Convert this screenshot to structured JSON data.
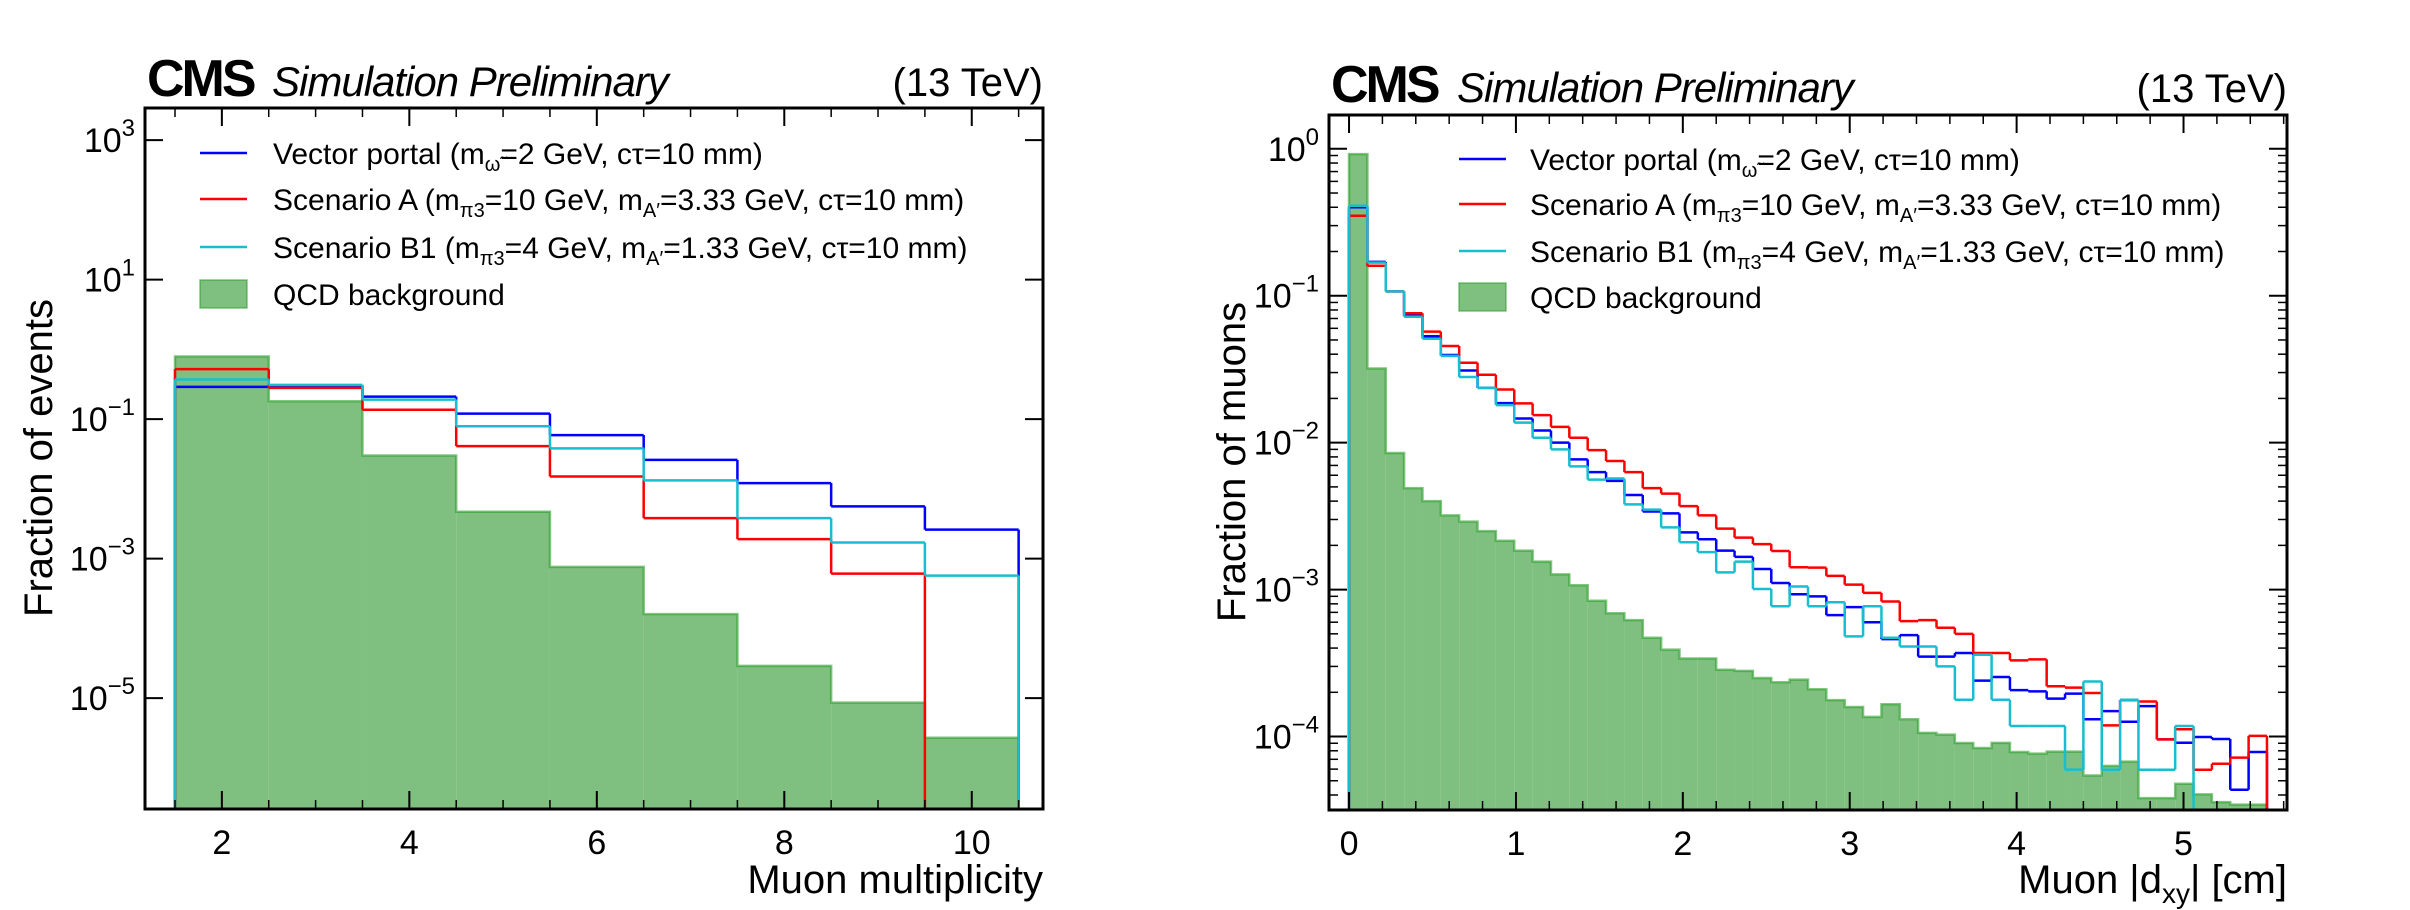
{
  "chart_data": [
    {
      "type": "bar",
      "histtype": "step",
      "header_left_bold": "CMS",
      "header_left_italic": "Simulation Preliminary",
      "header_right": "(13 TeV)",
      "xlabel": "Muon multiplicity",
      "ylabel": "Fraction of events",
      "yscale": "log",
      "xlim": [
        1.18,
        10.76
      ],
      "ylim_log10": [
        -6.59,
        3.46
      ],
      "xticks": [
        2,
        4,
        6,
        8,
        10
      ],
      "xtick_labels": [
        "2",
        "4",
        "6",
        "8",
        "10"
      ],
      "yticks_log10": [
        3,
        1,
        -1,
        -3,
        -5
      ],
      "ytick_labels": [
        {
          "base": "10",
          "exp": "3"
        },
        {
          "base": "10",
          "exp": "1"
        },
        {
          "base": "10",
          "exp": "−1"
        },
        {
          "base": "10",
          "exp": "−3"
        },
        {
          "base": "10",
          "exp": "−5"
        }
      ],
      "bin_edges": [
        1.5,
        2.5,
        3.5,
        4.5,
        5.5,
        6.5,
        7.5,
        8.5,
        9.5,
        10.5
      ],
      "legend_position": "upper-left",
      "series": [
        {
          "name": "Vector portal",
          "label_main": "Vector portal (m",
          "label_sub": "ω̃",
          "label_rest": "=2 GeV, cτ=10 mm)",
          "color": "#0000ff",
          "style": "step",
          "values": [
            0.29,
            0.3,
            0.21,
            0.12,
            0.059,
            0.026,
            0.0121,
            0.0056,
            0.0026
          ]
        },
        {
          "name": "Scenario A",
          "label_main": "Scenario A (m",
          "label_sub": "π3",
          "label_mid": "=10 GeV, m",
          "label_sub2": "A′",
          "label_rest": "=3.33 GeV, cτ=10 mm)",
          "color": "#ff0000",
          "style": "step",
          "values": [
            0.52,
            0.28,
            0.136,
            0.041,
            0.015,
            0.0038,
            0.0019,
            0.00061,
            0
          ]
        },
        {
          "name": "Scenario B1",
          "label_main": "Scenario B1 (m",
          "label_sub": "π3",
          "label_mid": "=4 GeV, m",
          "label_sub2": "A′",
          "label_rest": "=1.33 GeV, cτ=10 mm)",
          "color": "#17becf",
          "style": "step",
          "values": [
            0.37,
            0.31,
            0.19,
            0.079,
            0.038,
            0.0132,
            0.0038,
            0.0017,
            0.00057
          ]
        },
        {
          "name": "QCD background",
          "label_main": "QCD background",
          "color": "#2ca02c",
          "fill": "#7fbf7f",
          "style": "filled",
          "values": [
            0.79,
            0.18,
            0.03,
            0.0047,
            0.00076,
            0.00016,
            2.9e-05,
            8.6e-06,
            2.7e-06
          ]
        }
      ]
    },
    {
      "type": "bar",
      "histtype": "step",
      "header_left_bold": "CMS",
      "header_left_italic": "Simulation Preliminary",
      "header_right": "(13 TeV)",
      "xlabel_main": "Muon |d",
      "xlabel_sub": "xy",
      "xlabel_rest": "| [cm]",
      "ylabel": "Fraction of muons",
      "yscale": "log",
      "xlim": [
        -0.12,
        5.62
      ],
      "ylim_log10": [
        -4.5,
        0.23
      ],
      "xticks": [
        0,
        1,
        2,
        3,
        4,
        5
      ],
      "xtick_labels": [
        "0",
        "1",
        "2",
        "3",
        "4",
        "5"
      ],
      "yticks_log10": [
        0,
        -1,
        -2,
        -3,
        -4
      ],
      "ytick_labels": [
        {
          "base": "10",
          "exp": "0"
        },
        {
          "base": "10",
          "exp": "−1"
        },
        {
          "base": "10",
          "exp": "−2"
        },
        {
          "base": "10",
          "exp": "−3"
        },
        {
          "base": "10",
          "exp": "−4"
        }
      ],
      "bin_range": [
        0,
        5.5
      ],
      "n_bins": 50,
      "legend_position": "upper-right",
      "series": [
        {
          "name": "Vector portal",
          "label_main": "Vector portal (m",
          "label_sub": "ω̃",
          "label_rest": "=2 GeV, cτ=10 mm)",
          "color": "#0000ff",
          "style": "step",
          "values": [
            0.4,
            0.17,
            0.107,
            0.073,
            0.053,
            0.0395,
            0.031,
            0.0236,
            0.0186,
            0.0146,
            0.0121,
            0.01,
            0.0077,
            0.0063,
            0.0055,
            0.0044,
            0.0034,
            0.0033,
            0.00245,
            0.0022,
            0.00184,
            0.00167,
            0.00138,
            0.00111,
            0.00093,
            0.0009,
            0.00067,
            0.00076,
            0.0006,
            0.00046,
            0.00049,
            0.00035,
            0.00035,
            0.00037,
            0.00024,
            0.000254,
            0.000207,
            0.000203,
            0.000181,
            0.000196,
            0.000131,
            0.000149,
            0.000126,
            0.000161,
            9.57e-05,
            9.08e-05,
            9.93e-05,
            9.62e-05,
            4.34e-05,
            7.84e-05
          ]
        },
        {
          "name": "Scenario A",
          "label_main": "Scenario A (m",
          "label_sub": "π3",
          "label_mid": "=10 GeV, m",
          "label_sub2": "A′",
          "label_rest": "=3.33 GeV, cτ=10 mm)",
          "color": "#ff0000",
          "style": "step",
          "values": [
            0.35,
            0.16,
            0.107,
            0.076,
            0.057,
            0.0455,
            0.035,
            0.029,
            0.023,
            0.0185,
            0.0154,
            0.0128,
            0.0108,
            0.0089,
            0.0075,
            0.0063,
            0.0049,
            0.0045,
            0.0037,
            0.0032,
            0.0026,
            0.00226,
            0.00204,
            0.00183,
            0.00142,
            0.00141,
            0.00124,
            0.00108,
            0.00095,
            0.00083,
            0.00061,
            0.00062,
            0.00055,
            0.0005,
            0.00037,
            0.00037,
            0.00033,
            0.000335,
            0.00022,
            0.000215,
            0.000198,
            0.000119,
            0.000177,
            0.000173,
            9.57e-05,
            0.000112,
            5.94e-05,
            6.53e-05,
            7.18e-05,
            0.000101
          ]
        },
        {
          "name": "Scenario B1",
          "label_main": "Scenario B1 (m",
          "label_sub": "π3",
          "label_mid": "=4 GeV, m",
          "label_sub2": "A′",
          "label_rest": "=1.33 GeV, cτ=10 mm)",
          "color": "#17becf",
          "style": "step",
          "values": [
            0.41,
            0.168,
            0.107,
            0.072,
            0.051,
            0.039,
            0.028,
            0.0236,
            0.018,
            0.0137,
            0.0108,
            0.009,
            0.0069,
            0.0056,
            0.0057,
            0.0038,
            0.0035,
            0.00265,
            0.0021,
            0.0018,
            0.00131,
            0.00155,
            0.00101,
            0.00077,
            0.00105,
            0.00077,
            0.00082,
            0.00048,
            0.00077,
            0.00047,
            0.00041,
            0.00041,
            0.0003,
            0.000178,
            0.00036,
            0.000178,
            0.000118,
            0.000118,
            0.000118,
            5.95e-05,
            0.000237,
            5.94e-05,
            0.000178,
            5.94e-05,
            5.94e-05,
            0.000118,
            0,
            0,
            0,
            0
          ]
        },
        {
          "name": "QCD background",
          "label_main": "QCD background",
          "color": "#2ca02c",
          "fill": "#7fbf7f",
          "style": "filled",
          "values": [
            0.92,
            0.032,
            0.0085,
            0.0049,
            0.004,
            0.0032,
            0.0029,
            0.0025,
            0.00215,
            0.00184,
            0.00155,
            0.00127,
            0.00107,
            0.00084,
            0.00069,
            0.00062,
            0.00047,
            0.00039,
            0.00034,
            0.00034,
            0.000285,
            0.00028,
            0.00025,
            0.000234,
            0.000244,
            0.00021,
            0.000177,
            0.000159,
            0.000136,
            0.000166,
            0.000131,
            0.000106,
            0.000103,
            9.04e-05,
            8.36e-05,
            9.06e-05,
            7.84e-05,
            7.65e-05,
            7.9e-05,
            7.9e-05,
            5.43e-05,
            6.31e-05,
            6.75e-05,
            3.81e-05,
            3.81e-05,
            4.77e-05,
            4.04e-05,
            3.58e-05,
            3.44e-05,
            3.44e-05
          ]
        }
      ]
    }
  ]
}
